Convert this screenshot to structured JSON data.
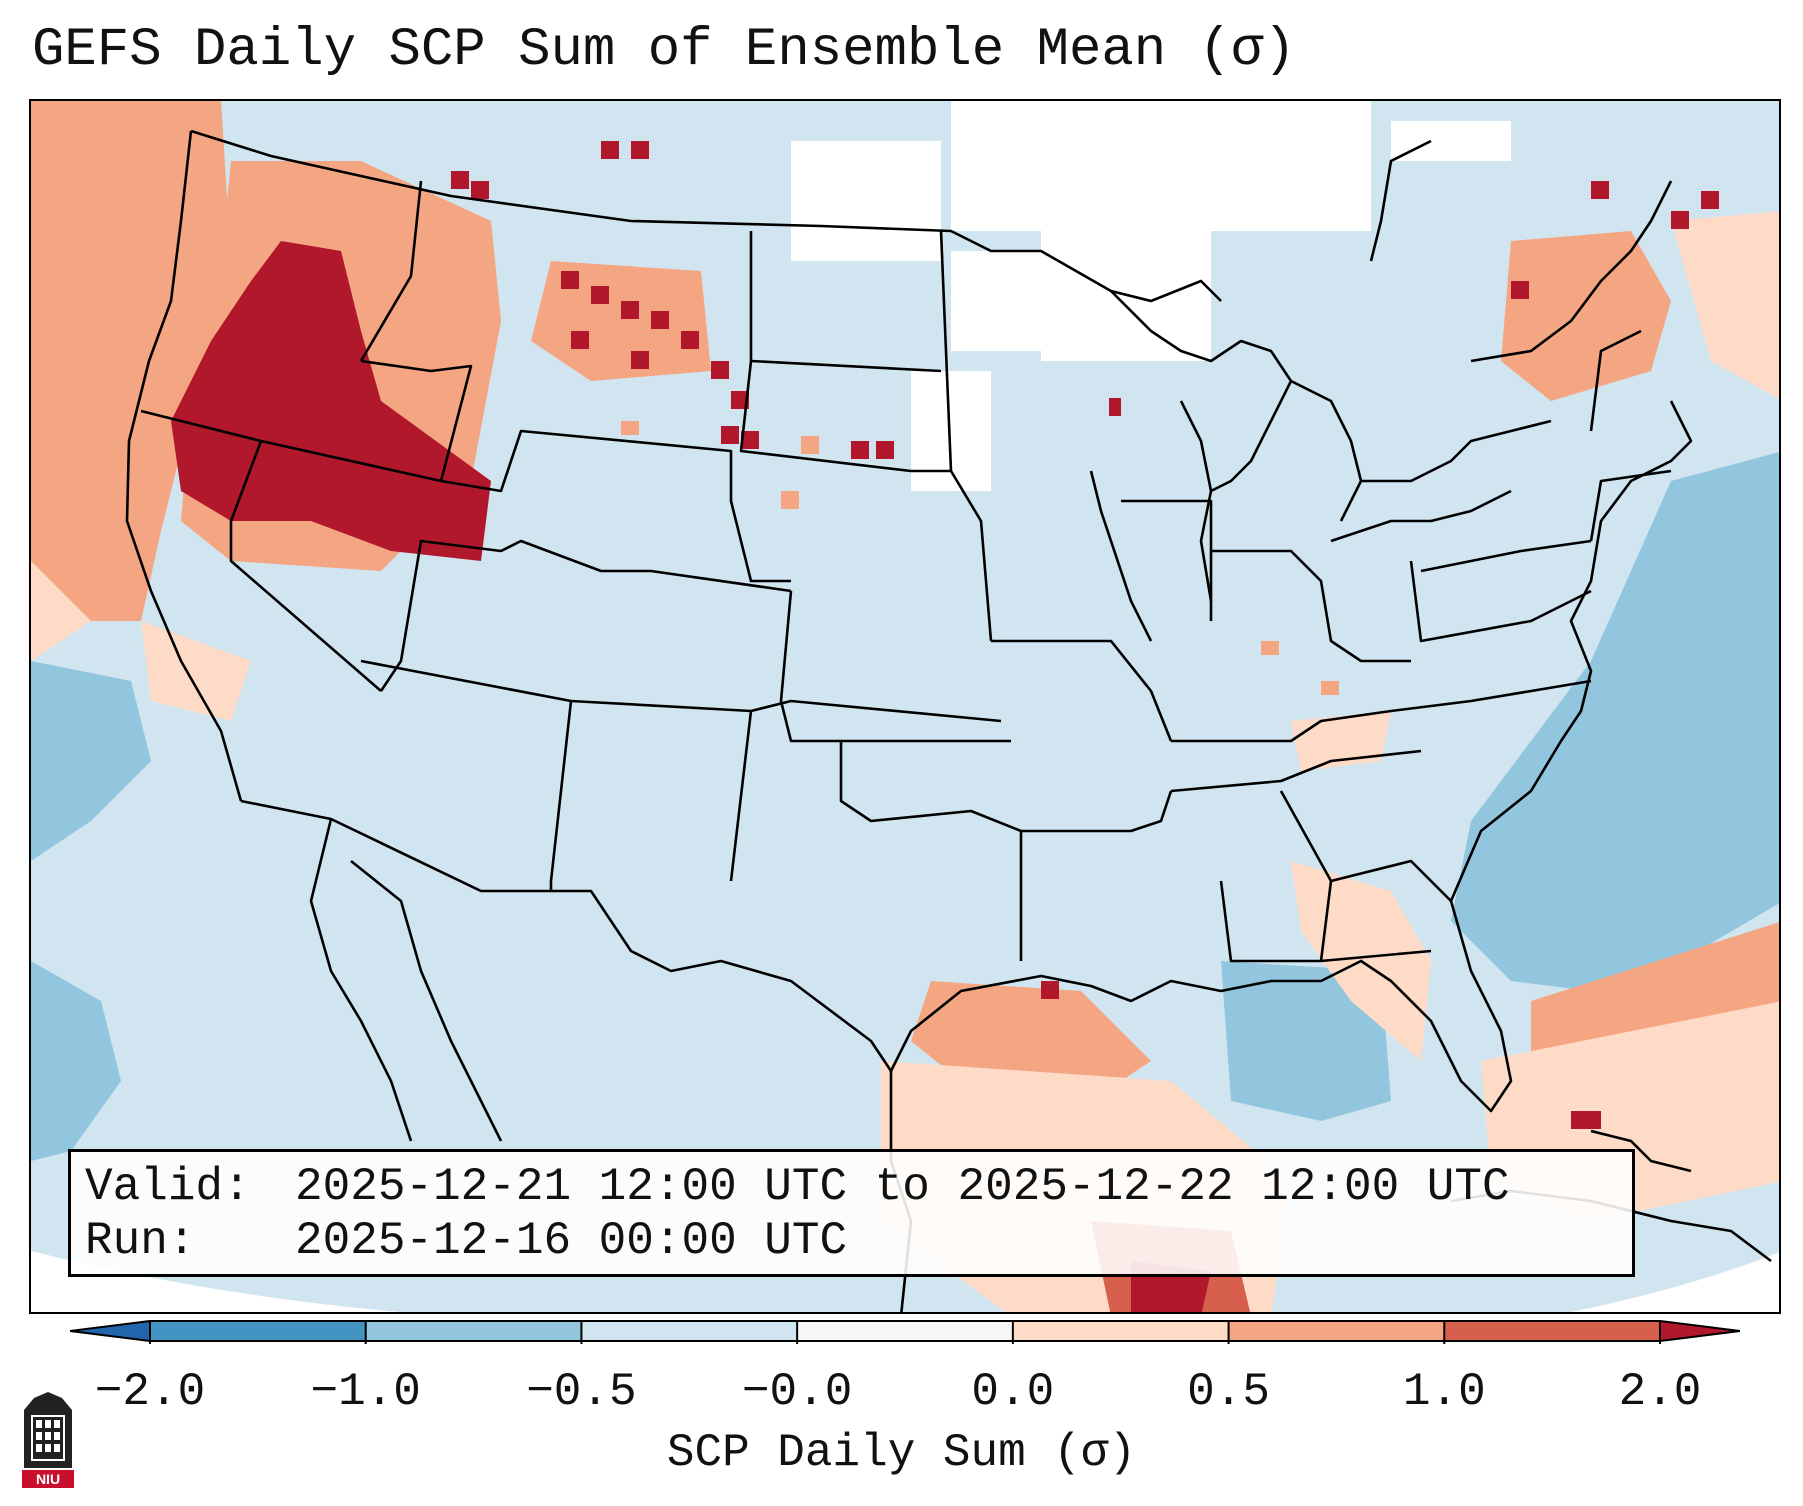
{
  "title": "GEFS Daily SCP Sum of Ensemble Mean (σ)",
  "info": {
    "valid_label": "Valid:",
    "valid_value": "2025-12-21 12:00 UTC to 2025-12-22 12:00 UTC",
    "run_label": "Run:",
    "run_value": "2025-12-16 00:00 UTC"
  },
  "colorbar": {
    "title": "SCP Daily Sum (σ)",
    "ticks": [
      "−2.0",
      "−1.0",
      "−0.5",
      "−0.0",
      "0.0",
      "0.5",
      "1.0",
      "2.0"
    ],
    "bin_colors": [
      "#4393c3",
      "#92c5de",
      "#d1e5f0",
      "#f7f7f7",
      "#fddbc7",
      "#f4a582",
      "#d6604d"
    ],
    "under_color": "#2166ac",
    "over_color": "#b2182b"
  },
  "map": {
    "background_color": "#d1e5f0",
    "border_color": "#000000"
  },
  "logo": {
    "text": "NIU",
    "color": "#c8102e"
  }
}
